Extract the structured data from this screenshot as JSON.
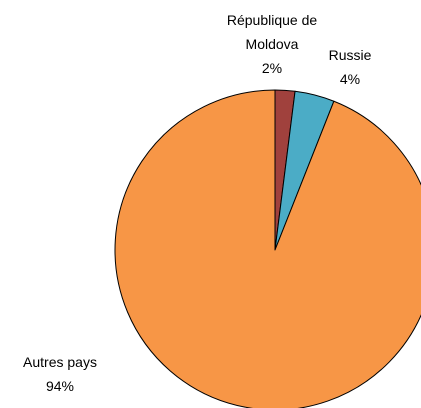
{
  "chart_data": {
    "type": "pie",
    "categories": [
      "République de Moldova",
      "Russie",
      "Autres pays"
    ],
    "values": [
      2,
      4,
      94
    ],
    "value_labels": [
      "2%",
      "4%",
      "94%"
    ],
    "colors": [
      "#a0413d",
      "#4bacc6",
      "#f79646"
    ]
  }
}
